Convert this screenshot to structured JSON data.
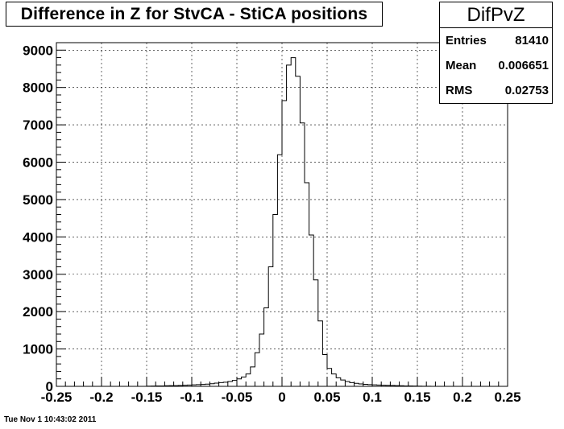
{
  "title": "Difference in Z for StvCA - StiCA positions",
  "stats": {
    "name": "DifPvZ",
    "rows": [
      {
        "label": "Entries",
        "value": "81410"
      },
      {
        "label": "Mean",
        "value": "0.006651"
      },
      {
        "label": "RMS",
        "value": "0.02753"
      }
    ]
  },
  "timestamp": "Tue Nov  1 10:43:02 2011",
  "chart_data": {
    "type": "bar",
    "xlim": [
      -0.25,
      0.25
    ],
    "ylim": [
      0,
      9200
    ],
    "bin_width": 0.005,
    "x_ticks": [
      -0.25,
      -0.2,
      -0.15,
      -0.1,
      -0.05,
      0,
      0.05,
      0.1,
      0.15,
      0.2,
      0.25
    ],
    "x_tick_labels": [
      "-0.25",
      "-0.2",
      "-0.15",
      "-0.1",
      "-0.05",
      "0",
      "0.05",
      "0.1",
      "0.15",
      "0.2",
      "0.25"
    ],
    "y_ticks": [
      0,
      1000,
      2000,
      3000,
      4000,
      5000,
      6000,
      7000,
      8000,
      9000
    ],
    "y_tick_labels": [
      "0",
      "1000",
      "2000",
      "3000",
      "4000",
      "5000",
      "6000",
      "7000",
      "8000",
      "9000"
    ],
    "grid": true,
    "bins": [
      [
        -0.15,
        5
      ],
      [
        -0.145,
        8
      ],
      [
        -0.14,
        10
      ],
      [
        -0.135,
        12
      ],
      [
        -0.13,
        15
      ],
      [
        -0.125,
        18
      ],
      [
        -0.12,
        20
      ],
      [
        -0.115,
        25
      ],
      [
        -0.11,
        30
      ],
      [
        -0.105,
        35
      ],
      [
        -0.1,
        40
      ],
      [
        -0.095,
        45
      ],
      [
        -0.09,
        50
      ],
      [
        -0.085,
        60
      ],
      [
        -0.08,
        70
      ],
      [
        -0.075,
        85
      ],
      [
        -0.07,
        100
      ],
      [
        -0.065,
        110
      ],
      [
        -0.06,
        130
      ],
      [
        -0.055,
        160
      ],
      [
        -0.05,
        200
      ],
      [
        -0.045,
        250
      ],
      [
        -0.04,
        330
      ],
      [
        -0.035,
        520
      ],
      [
        -0.03,
        900
      ],
      [
        -0.025,
        1400
      ],
      [
        -0.02,
        2100
      ],
      [
        -0.015,
        3200
      ],
      [
        -0.01,
        4600
      ],
      [
        -0.005,
        6200
      ],
      [
        0,
        7650
      ],
      [
        0.005,
        8600
      ],
      [
        0.01,
        8800
      ],
      [
        0.015,
        8300
      ],
      [
        0.02,
        7050
      ],
      [
        0.025,
        5450
      ],
      [
        0.03,
        4050
      ],
      [
        0.035,
        2850
      ],
      [
        0.04,
        1750
      ],
      [
        0.045,
        850
      ],
      [
        0.05,
        480
      ],
      [
        0.055,
        330
      ],
      [
        0.06,
        230
      ],
      [
        0.065,
        170
      ],
      [
        0.07,
        130
      ],
      [
        0.075,
        100
      ],
      [
        0.08,
        80
      ],
      [
        0.085,
        65
      ],
      [
        0.09,
        55
      ],
      [
        0.095,
        45
      ],
      [
        0.1,
        40
      ],
      [
        0.105,
        35
      ],
      [
        0.11,
        30
      ],
      [
        0.115,
        28
      ],
      [
        0.12,
        24
      ],
      [
        0.125,
        20
      ],
      [
        0.13,
        16
      ],
      [
        0.135,
        12
      ],
      [
        0.14,
        10
      ],
      [
        0.145,
        8
      ],
      [
        0.15,
        5
      ],
      [
        0.155,
        4
      ],
      [
        0.16,
        3
      ]
    ]
  }
}
